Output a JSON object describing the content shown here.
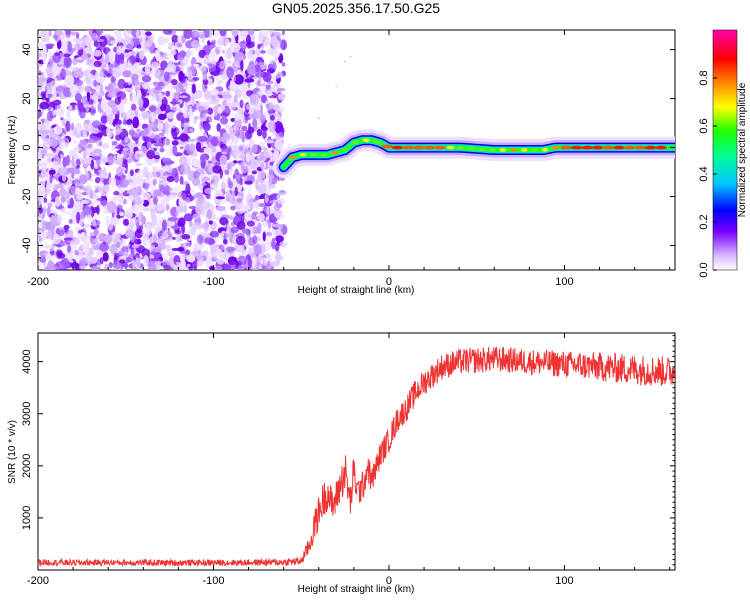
{
  "title": "GN05.2025.356.17.50.G25",
  "chart_data": [
    {
      "type": "heatmap",
      "name": "spectrogram",
      "xlabel": "Height of straight line (km)",
      "ylabel": "Frequency (Hz)",
      "xlim": [
        -200,
        163
      ],
      "ylim": [
        -50,
        48
      ],
      "xticks": [
        -200,
        -100,
        0,
        100
      ],
      "yticks": [
        -40,
        -20,
        0,
        20,
        40
      ],
      "noise_region_x": [
        -200,
        -60
      ],
      "ridge_track": {
        "x": [
          -60,
          -55,
          -50,
          -45,
          -40,
          -35,
          -30,
          -25,
          -20,
          -15,
          -10,
          -5,
          0,
          20,
          40,
          60,
          70,
          80,
          88,
          95,
          100,
          120,
          140,
          163
        ],
        "freq": [
          -8,
          -4,
          -3,
          -3,
          -3,
          -3,
          -2,
          -1,
          2,
          3,
          3,
          2,
          0,
          0,
          0,
          -1,
          -1,
          -1,
          -1,
          0,
          0,
          0,
          0,
          0
        ]
      },
      "colorbar": {
        "label": "Normalized spectral amplitude",
        "range": [
          0.0,
          1.0
        ],
        "ticks": [
          0.0,
          0.2,
          0.4,
          0.6,
          0.8
        ],
        "tick_labels": [
          "0.0",
          "0.2",
          "0.4",
          "0.6",
          "0.8"
        ]
      }
    },
    {
      "type": "line",
      "name": "snr",
      "xlabel": "Height of straight line (km)",
      "ylabel": "SNR (10 * v/v)",
      "xlim": [
        -200,
        163
      ],
      "ylim": [
        0,
        4550
      ],
      "xticks": [
        -200,
        -100,
        0,
        100
      ],
      "yticks": [
        1000,
        2000,
        3000,
        4000
      ],
      "series": [
        {
          "name": "SNR",
          "color": "#ee3333",
          "x": [
            -200,
            -180,
            -160,
            -140,
            -120,
            -100,
            -80,
            -60,
            -50,
            -45,
            -42,
            -38,
            -35,
            -32,
            -28,
            -25,
            -22,
            -20,
            -18,
            -15,
            -12,
            -10,
            -5,
            0,
            5,
            10,
            15,
            20,
            25,
            30,
            40,
            60,
            80,
            100,
            120,
            140,
            163
          ],
          "y": [
            150,
            140,
            145,
            140,
            140,
            140,
            145,
            150,
            170,
            500,
            900,
            1300,
            1500,
            1200,
            1600,
            1900,
            1300,
            1900,
            1500,
            1600,
            2000,
            1700,
            2200,
            2500,
            2900,
            3100,
            3400,
            3600,
            3750,
            3900,
            4000,
            4050,
            4000,
            3950,
            3900,
            3850,
            3800
          ],
          "noise": [
            60,
            60,
            60,
            60,
            60,
            60,
            60,
            70,
            80,
            200,
            300,
            350,
            350,
            300,
            350,
            400,
            300,
            350,
            300,
            300,
            300,
            250,
            250,
            250,
            250,
            250,
            250,
            250,
            250,
            250,
            250,
            250,
            250,
            260,
            280,
            300,
            300
          ]
        }
      ]
    }
  ]
}
